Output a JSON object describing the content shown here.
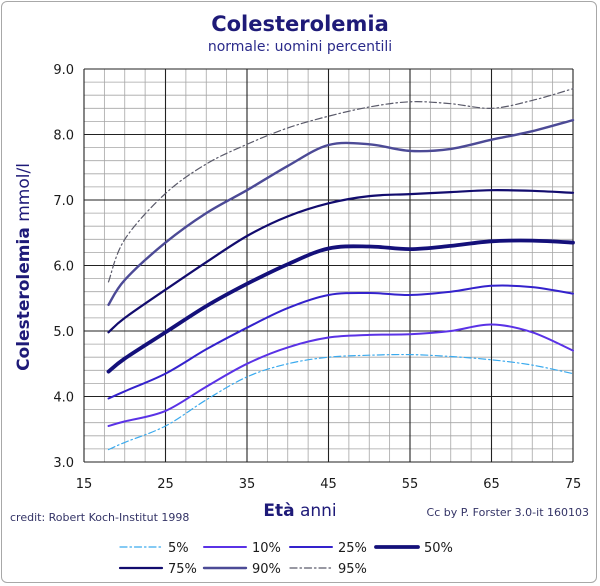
{
  "chart_data": {
    "type": "line",
    "title": "Colesterolemia",
    "subtitle": "normale: uomini percentili",
    "xlabel_bold": "Età",
    "xlabel_rest": " anni",
    "ylabel_bold": "Colesterolemia",
    "ylabel_rest": " mmol/l",
    "xlim": [
      15,
      75
    ],
    "ylim": [
      3.0,
      9.0
    ],
    "x_ticks": [
      "15",
      "25",
      "35",
      "45",
      "55",
      "65",
      "75"
    ],
    "y_ticks": [
      "3.0",
      "4.0",
      "5.0",
      "6.0",
      "7.0",
      "8.0",
      "9.0"
    ],
    "grid": true,
    "legend_position": "bottom",
    "credit_left": "credit: Robert Koch-Institut 1998",
    "credit_right": "Cc by P. Forster 3.0-it 160103",
    "series": [
      {
        "name": "5%",
        "color": "#3aaaee",
        "dash": "dashdot",
        "width": 1.2,
        "points": [
          [
            18,
            3.19
          ],
          [
            20,
            3.3
          ],
          [
            25,
            3.55
          ],
          [
            30,
            3.95
          ],
          [
            35,
            4.3
          ],
          [
            40,
            4.5
          ],
          [
            45,
            4.6
          ],
          [
            50,
            4.63
          ],
          [
            55,
            4.64
          ],
          [
            60,
            4.61
          ],
          [
            65,
            4.56
          ],
          [
            70,
            4.48
          ],
          [
            75,
            4.35
          ]
        ]
      },
      {
        "name": "10%",
        "color": "#5a32e6",
        "dash": "solid",
        "width": 2.0,
        "points": [
          [
            18,
            3.55
          ],
          [
            20,
            3.62
          ],
          [
            25,
            3.78
          ],
          [
            30,
            4.15
          ],
          [
            35,
            4.5
          ],
          [
            40,
            4.75
          ],
          [
            45,
            4.9
          ],
          [
            50,
            4.94
          ],
          [
            55,
            4.95
          ],
          [
            60,
            5.0
          ],
          [
            65,
            5.1
          ],
          [
            70,
            4.98
          ],
          [
            75,
            4.7
          ]
        ]
      },
      {
        "name": "25%",
        "color": "#3422cc",
        "dash": "solid",
        "width": 2.0,
        "points": [
          [
            18,
            3.97
          ],
          [
            20,
            4.08
          ],
          [
            25,
            4.35
          ],
          [
            30,
            4.72
          ],
          [
            35,
            5.05
          ],
          [
            40,
            5.35
          ],
          [
            45,
            5.55
          ],
          [
            50,
            5.58
          ],
          [
            55,
            5.55
          ],
          [
            60,
            5.6
          ],
          [
            65,
            5.69
          ],
          [
            70,
            5.67
          ],
          [
            75,
            5.57
          ]
        ]
      },
      {
        "name": "50%",
        "color": "#14107a",
        "dash": "solid",
        "width": 3.8,
        "points": [
          [
            18,
            4.38
          ],
          [
            20,
            4.58
          ],
          [
            25,
            4.98
          ],
          [
            30,
            5.38
          ],
          [
            35,
            5.72
          ],
          [
            40,
            6.02
          ],
          [
            45,
            6.26
          ],
          [
            50,
            6.29
          ],
          [
            55,
            6.25
          ],
          [
            60,
            6.3
          ],
          [
            65,
            6.37
          ],
          [
            70,
            6.38
          ],
          [
            75,
            6.35
          ]
        ]
      },
      {
        "name": "75%",
        "color": "#120c6e",
        "dash": "solid",
        "width": 2.2,
        "points": [
          [
            18,
            4.98
          ],
          [
            20,
            5.2
          ],
          [
            25,
            5.63
          ],
          [
            30,
            6.05
          ],
          [
            35,
            6.45
          ],
          [
            40,
            6.75
          ],
          [
            45,
            6.95
          ],
          [
            50,
            7.06
          ],
          [
            55,
            7.09
          ],
          [
            60,
            7.12
          ],
          [
            65,
            7.15
          ],
          [
            70,
            7.14
          ],
          [
            75,
            7.11
          ]
        ]
      },
      {
        "name": "90%",
        "color": "#4c4a96",
        "dash": "solid",
        "width": 2.4,
        "points": [
          [
            18,
            5.4
          ],
          [
            20,
            5.78
          ],
          [
            25,
            6.35
          ],
          [
            30,
            6.8
          ],
          [
            35,
            7.15
          ],
          [
            40,
            7.52
          ],
          [
            45,
            7.84
          ],
          [
            50,
            7.85
          ],
          [
            55,
            7.75
          ],
          [
            60,
            7.78
          ],
          [
            65,
            7.92
          ],
          [
            70,
            8.05
          ],
          [
            75,
            8.22
          ]
        ]
      },
      {
        "name": "95%",
        "color": "#5a5a6a",
        "dash": "dashdot",
        "width": 1.2,
        "points": [
          [
            18,
            5.75
          ],
          [
            20,
            6.4
          ],
          [
            25,
            7.1
          ],
          [
            30,
            7.55
          ],
          [
            35,
            7.85
          ],
          [
            40,
            8.1
          ],
          [
            45,
            8.28
          ],
          [
            50,
            8.42
          ],
          [
            55,
            8.5
          ],
          [
            60,
            8.47
          ],
          [
            65,
            8.4
          ],
          [
            70,
            8.52
          ],
          [
            75,
            8.7
          ]
        ]
      }
    ]
  }
}
